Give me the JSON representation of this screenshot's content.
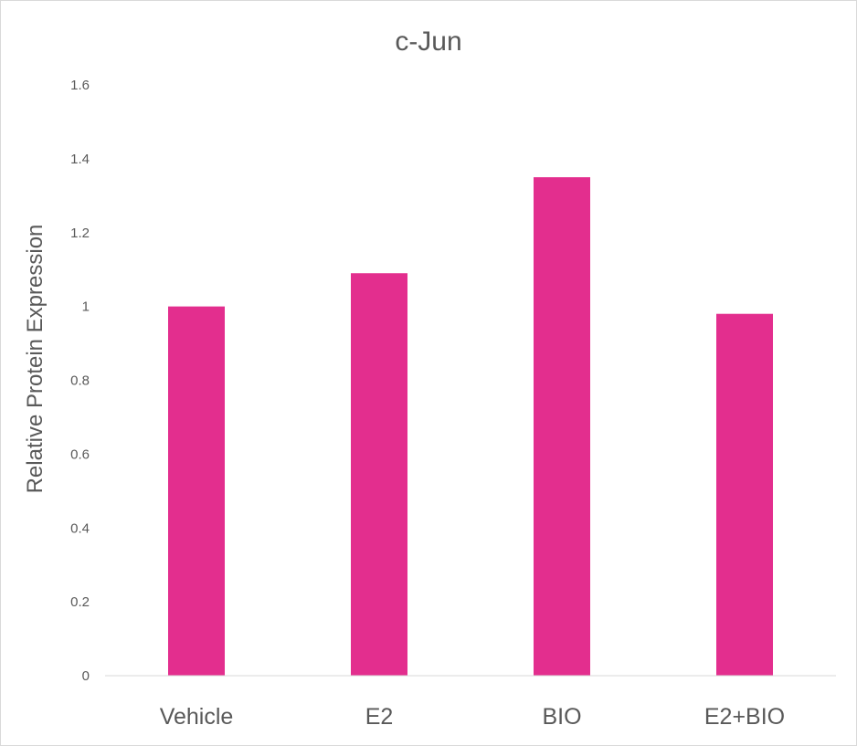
{
  "chart_data": {
    "type": "bar",
    "title": "c-Jun",
    "xlabel": "",
    "ylabel": "Relative Protein Expression",
    "categories": [
      "Vehicle",
      "E2",
      "BIO",
      "E2+BIO"
    ],
    "values": [
      1.0,
      1.09,
      1.35,
      0.98
    ],
    "ylim": [
      0,
      1.6
    ],
    "yticks": [
      0,
      0.2,
      0.4,
      0.6,
      0.8,
      1,
      1.2,
      1.4,
      1.6
    ],
    "ytick_labels": [
      "0",
      "0.2",
      "0.4",
      "0.6",
      "0.8",
      "1",
      "1.2",
      "1.4",
      "1.6"
    ],
    "grid": false,
    "legend": "none",
    "colors": {
      "bar": "#e32e8e",
      "axis": "#d9d9d9",
      "text": "#595959"
    }
  }
}
